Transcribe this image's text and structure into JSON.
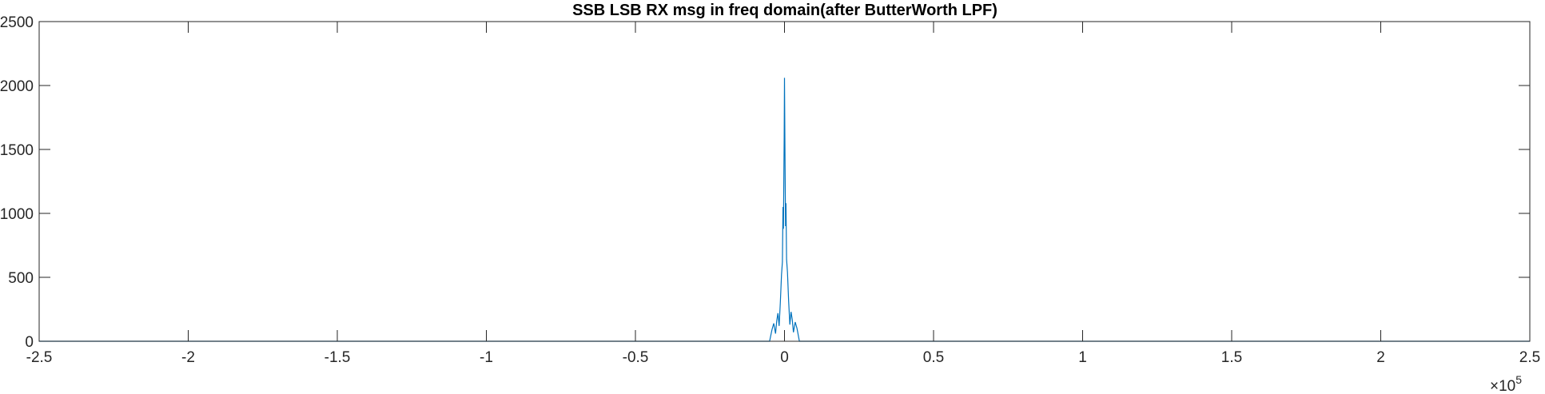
{
  "chart_data": {
    "type": "line",
    "title": "SSB LSB RX msg in freq domain(after ButterWorth LPF)",
    "xlabel": "",
    "ylabel": "",
    "x_exponent_label": "×10",
    "x_exponent_power": "5",
    "xlim": [
      -250000,
      250000
    ],
    "ylim": [
      0,
      2500
    ],
    "x_ticks": [
      -250000,
      -200000,
      -150000,
      -100000,
      -50000,
      0,
      50000,
      100000,
      150000,
      200000,
      250000
    ],
    "x_tick_labels": [
      "-2.5",
      "-2",
      "-1.5",
      "-1",
      "-0.5",
      "0",
      "0.5",
      "1",
      "1.5",
      "2",
      "2.5"
    ],
    "y_ticks": [
      0,
      500,
      1000,
      1500,
      2000,
      2500
    ],
    "y_tick_labels": [
      "0",
      "500",
      "1000",
      "1500",
      "2000",
      "2500"
    ],
    "grid": false,
    "series": [
      {
        "color": "#0072BD",
        "x": [
          -250000,
          -5000,
          -4200,
          -3600,
          -3000,
          -2600,
          -2200,
          -1800,
          -1400,
          -1000,
          -700,
          -500,
          -350,
          -200,
          -100,
          0,
          100,
          200,
          350,
          500,
          700,
          1000,
          1400,
          1800,
          2200,
          2600,
          3000,
          3600,
          4200,
          5000,
          250000
        ],
        "y": [
          0,
          0,
          90,
          140,
          60,
          160,
          220,
          120,
          300,
          520,
          620,
          1050,
          880,
          1320,
          1600,
          2060,
          1700,
          1350,
          900,
          1080,
          640,
          540,
          310,
          130,
          230,
          170,
          70,
          150,
          100,
          0,
          0
        ]
      }
    ]
  }
}
